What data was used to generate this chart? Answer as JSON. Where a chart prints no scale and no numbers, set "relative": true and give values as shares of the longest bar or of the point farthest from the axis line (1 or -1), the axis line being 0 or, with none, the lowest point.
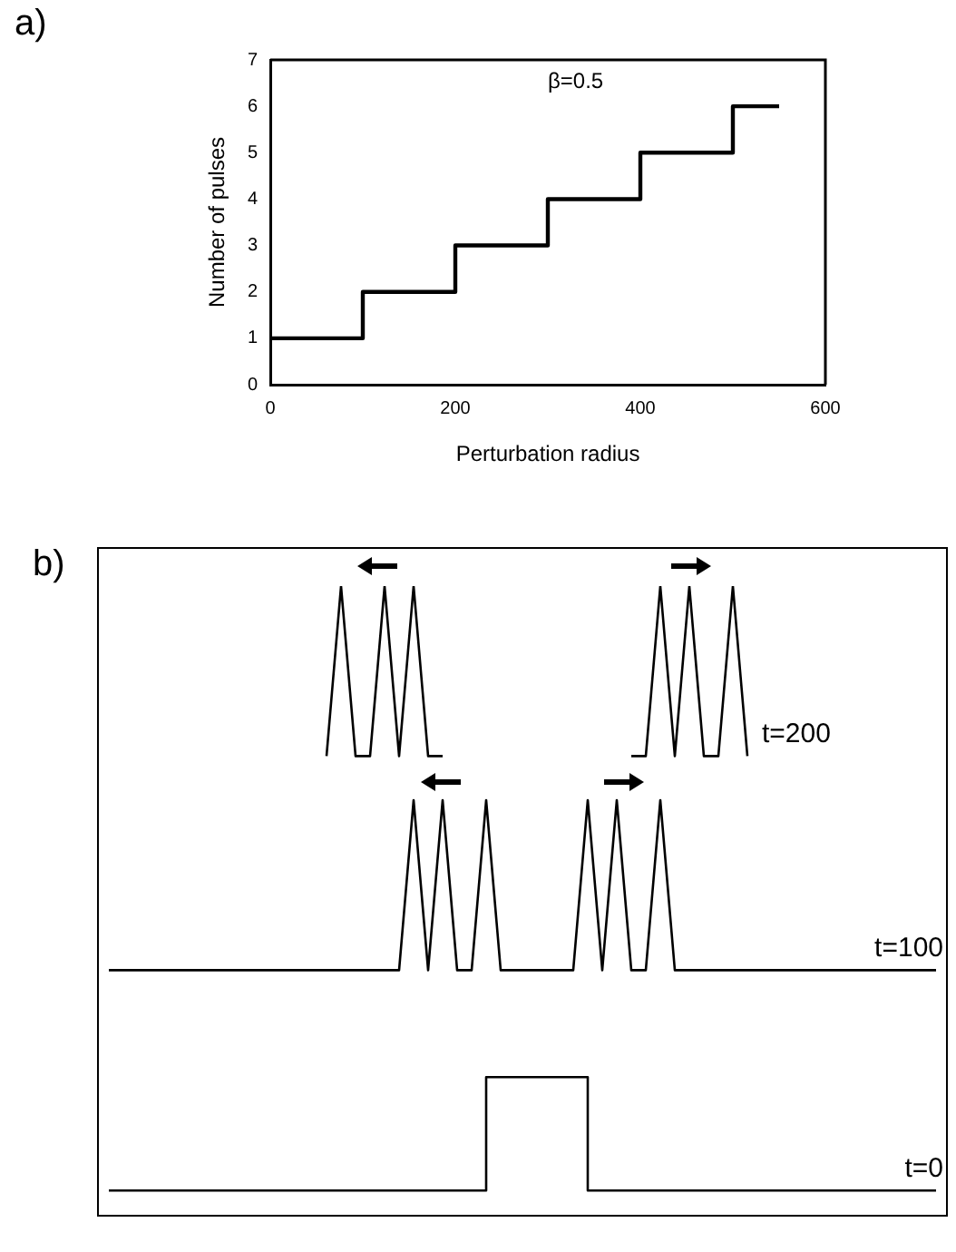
{
  "chart_data": [
    {
      "type": "step",
      "title": "a)",
      "xlabel": "Perturbation radius",
      "ylabel": "Number of pulses",
      "annotations": [
        "β=0.5"
      ],
      "x": [
        0,
        100,
        200,
        300,
        400,
        500,
        550
      ],
      "values": [
        1,
        2,
        3,
        4,
        5,
        6,
        6
      ],
      "color": "#000000",
      "xlim": [
        0,
        600
      ],
      "xticks": [
        0,
        200,
        400,
        600
      ],
      "ylim": [
        0,
        7
      ],
      "yticks": [
        0,
        1,
        2,
        3,
        4,
        5,
        6,
        7
      ],
      "grid": false,
      "legend": false
    },
    {
      "type": "line",
      "title": "b)",
      "relative": true,
      "grid": false,
      "legend": false,
      "categories": [
        null,
        null,
        null,
        null,
        null,
        null,
        null,
        null,
        null,
        null,
        null,
        null,
        null,
        null,
        null,
        null,
        null,
        null,
        null,
        null,
        null,
        null,
        null,
        null,
        null,
        null,
        null,
        null,
        null,
        null,
        null,
        null,
        null,
        null,
        null,
        null,
        null,
        null,
        null,
        null,
        null,
        null,
        null,
        null,
        null,
        null,
        null,
        null,
        null,
        null,
        null,
        null,
        null,
        null,
        null,
        null,
        null,
        null
      ],
      "series": [
        {
          "name": "t=200",
          "color": "#000000",
          "values": [
            null,
            null,
            null,
            null,
            null,
            null,
            null,
            null,
            null,
            null,
            null,
            null,
            null,
            null,
            null,
            0.73,
            1,
            0.73,
            0.73,
            1,
            0.73,
            1,
            0.73,
            0.73,
            null,
            null,
            null,
            null,
            null,
            null,
            null,
            null,
            null,
            null,
            null,
            null,
            0.73,
            0.73,
            1,
            0.73,
            1,
            0.73,
            0.73,
            1,
            0.73,
            null,
            null,
            null,
            null,
            null,
            null,
            null,
            null,
            null,
            null,
            null,
            null,
            null
          ]
        },
        {
          "name": "t=100",
          "color": "#000000",
          "values": [
            0.39,
            0.39,
            0.39,
            0.39,
            0.39,
            0.39,
            0.39,
            0.39,
            0.39,
            0.39,
            0.39,
            0.39,
            0.39,
            0.39,
            0.39,
            0.39,
            0.39,
            0.39,
            0.39,
            0.39,
            0.39,
            0.66,
            0.39,
            0.66,
            0.39,
            0.39,
            0.66,
            0.39,
            0.39,
            0.39,
            0.39,
            0.39,
            0.39,
            0.66,
            0.39,
            0.66,
            0.39,
            0.39,
            0.66,
            0.39,
            0.39,
            0.39,
            0.39,
            0.39,
            0.39,
            0.39,
            0.39,
            0.39,
            0.39,
            0.39,
            0.39,
            0.39,
            0.39,
            0.39,
            0.39,
            0.39,
            0.39,
            0.39
          ]
        },
        {
          "name": "t=0",
          "type": "step",
          "color": "#000000",
          "values": [
            0.04,
            0.04,
            0.04,
            0.04,
            0.04,
            0.04,
            0.04,
            0.04,
            0.04,
            0.04,
            0.04,
            0.04,
            0.04,
            0.04,
            0.04,
            0.04,
            0.04,
            0.04,
            0.04,
            0.04,
            0.04,
            0.04,
            0.04,
            0.04,
            0.04,
            0.04,
            0.22,
            0.22,
            0.22,
            0.22,
            0.22,
            0.22,
            0.22,
            0.04,
            0.04,
            0.04,
            0.04,
            0.04,
            0.04,
            0.04,
            0.04,
            0.04,
            0.04,
            0.04,
            0.04,
            0.04,
            0.04,
            0.04,
            0.04,
            0.04,
            0.04,
            0.04,
            0.04,
            0.04,
            0.04,
            0.04,
            0.04,
            0.04
          ]
        }
      ]
    }
  ]
}
